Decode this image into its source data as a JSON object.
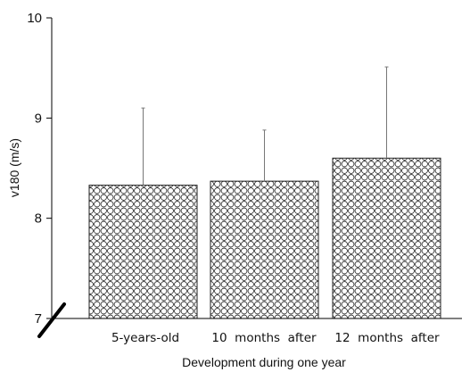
{
  "chart_data": {
    "type": "bar",
    "title": "",
    "xlabel": "Development during one year",
    "ylabel": "v180 (m/s)",
    "ylim": [
      7,
      10
    ],
    "yticks": [
      "7",
      "8",
      "9",
      "10"
    ],
    "categories": [
      "5-years-old",
      "10  months  after",
      "12  months  after"
    ],
    "values": [
      8.33,
      8.37,
      8.6
    ],
    "error_upper": [
      9.1,
      8.88,
      9.51
    ],
    "bar_pattern": "circles",
    "axis_break": true,
    "grid": false,
    "legend": "none"
  }
}
